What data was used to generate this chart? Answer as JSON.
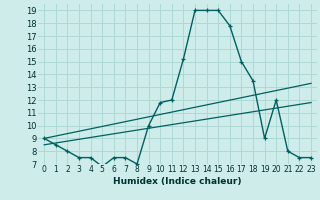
{
  "xlabel": "Humidex (Indice chaleur)",
  "background_color": "#ceecea",
  "grid_color": "#aed8d4",
  "line_color": "#006060",
  "xlim": [
    -0.5,
    23.5
  ],
  "ylim": [
    7,
    19.5
  ],
  "xticks": [
    0,
    1,
    2,
    3,
    4,
    5,
    6,
    7,
    8,
    9,
    10,
    11,
    12,
    13,
    14,
    15,
    16,
    17,
    18,
    19,
    20,
    21,
    22,
    23
  ],
  "yticks": [
    7,
    8,
    9,
    10,
    11,
    12,
    13,
    14,
    15,
    16,
    17,
    18,
    19
  ],
  "line1_x": [
    0,
    1,
    2,
    3,
    4,
    5,
    6,
    7,
    8,
    9,
    10,
    11,
    12,
    13,
    14,
    15,
    16,
    17,
    18,
    19,
    20,
    21,
    22,
    23
  ],
  "line1_y": [
    9,
    8.5,
    8,
    7.5,
    7.5,
    6.8,
    7.5,
    7.5,
    7,
    10,
    11.8,
    12,
    15.2,
    19,
    19,
    19,
    17.8,
    15,
    13.5,
    9,
    12,
    8,
    7.5,
    7.5
  ],
  "line2_x": [
    0,
    23
  ],
  "line2_y": [
    9.0,
    13.3
  ],
  "line3_x": [
    0,
    23
  ],
  "line3_y": [
    8.5,
    11.8
  ]
}
